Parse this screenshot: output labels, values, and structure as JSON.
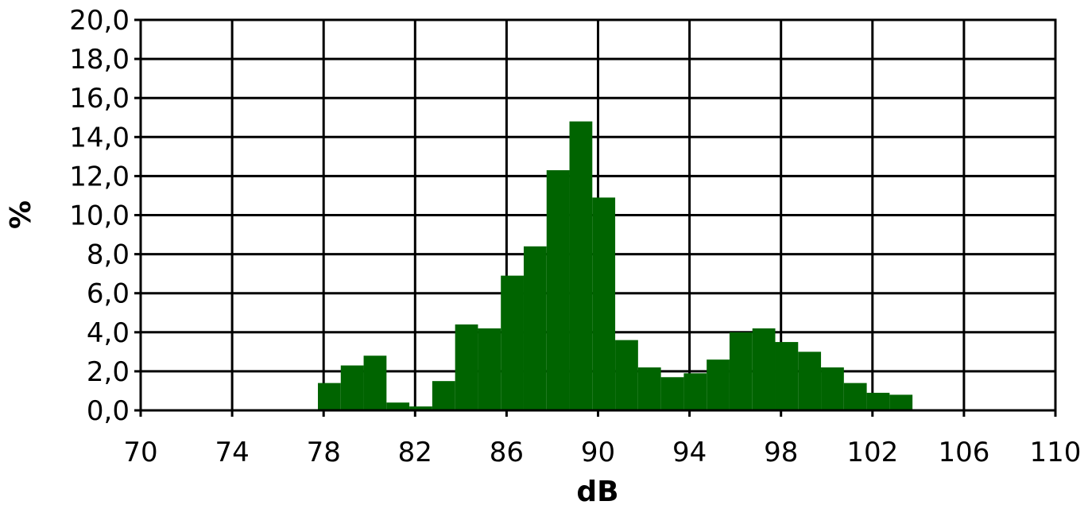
{
  "chart_data": {
    "type": "bar",
    "xlabel": "dB",
    "ylabel": "%",
    "xlim": [
      70,
      110
    ],
    "ylim": [
      0,
      20
    ],
    "x_ticks": [
      "70",
      "74",
      "78",
      "82",
      "86",
      "90",
      "94",
      "98",
      "102",
      "106",
      "110"
    ],
    "y_ticks": [
      "0,0",
      "2,0",
      "4,0",
      "6,0",
      "8,0",
      "10,0",
      "12,0",
      "14,0",
      "16,0",
      "18,0",
      "20,0"
    ],
    "bin_width": 1,
    "x": [
      78,
      79,
      80,
      81,
      82,
      83,
      84,
      85,
      86,
      87,
      88,
      89,
      90,
      91,
      92,
      93,
      94,
      95,
      96,
      97,
      98,
      99,
      100,
      101,
      102,
      103
    ],
    "values": [
      1.4,
      2.3,
      2.8,
      0.4,
      0.2,
      1.5,
      4.4,
      4.2,
      6.9,
      8.4,
      12.3,
      14.8,
      10.9,
      3.6,
      2.2,
      1.7,
      1.9,
      2.6,
      4.0,
      4.2,
      3.5,
      3.0,
      2.2,
      1.4,
      0.9,
      0.8
    ],
    "bar_color": "#006400",
    "grid": true
  }
}
